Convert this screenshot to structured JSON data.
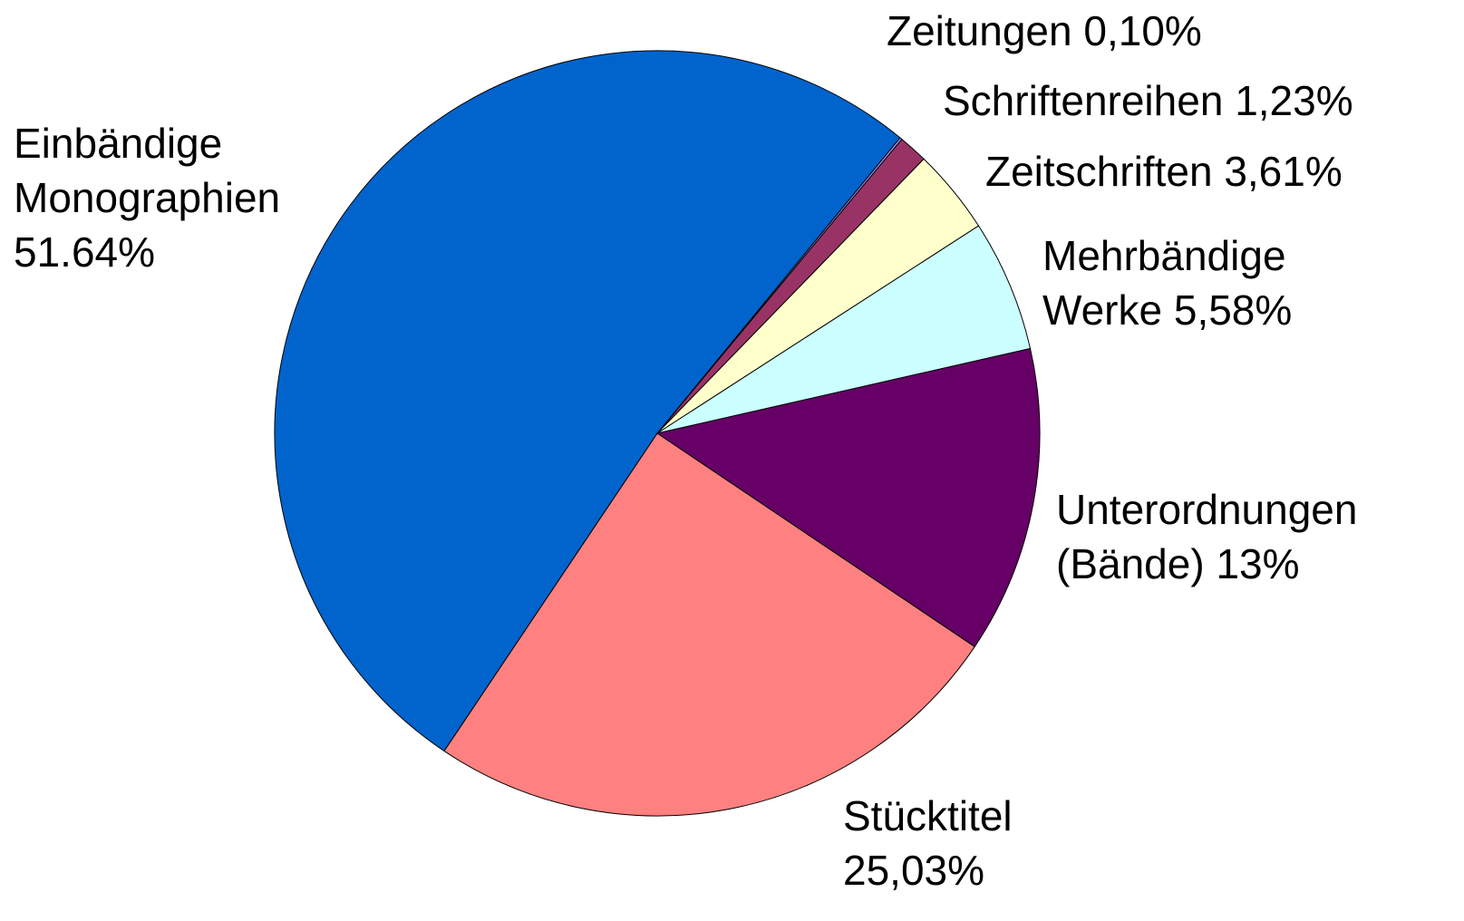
{
  "chart_data": {
    "type": "pie",
    "categories": [
      "Zeitungen",
      "Schriftenreihen",
      "Zeitschriften",
      "Mehrbändige Werke",
      "Unterordnungen (Bände)",
      "Stücktitel",
      "Einbändige Monographien"
    ],
    "values": [
      0.1,
      1.23,
      3.61,
      5.58,
      13,
      25.03,
      51.64
    ],
    "value_labels": [
      "0,10%",
      "1,23%",
      "3,61%",
      "5,58%",
      "13%",
      "25,03%",
      "51.64%"
    ],
    "colors": [
      "#9999ff",
      "#993366",
      "#ffffcc",
      "#ccffff",
      "#660066",
      "#ff8080",
      "#0064cc"
    ]
  }
}
